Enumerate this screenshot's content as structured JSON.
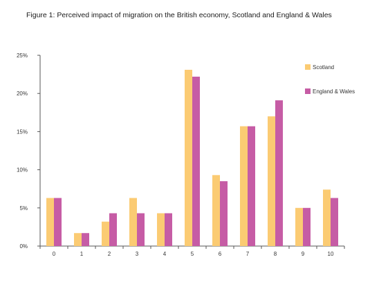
{
  "chart_data": {
    "type": "bar",
    "title": "Figure 1: Perceived impact of migration on the British economy, Scotland and England & Wales",
    "categories": [
      "0",
      "1",
      "2",
      "3",
      "4",
      "5",
      "6",
      "7",
      "8",
      "9",
      "10"
    ],
    "series": [
      {
        "name": "Scotland",
        "color": "#FBCB73",
        "values": [
          6.3,
          1.7,
          3.2,
          6.3,
          4.3,
          23.1,
          9.3,
          15.7,
          17.0,
          5.0,
          7.4
        ]
      },
      {
        "name": "England & Wales",
        "color": "#C65CA5",
        "values": [
          6.3,
          1.7,
          4.3,
          4.3,
          4.3,
          22.2,
          8.5,
          15.7,
          19.1,
          5.0,
          6.3
        ]
      }
    ],
    "y_ticks": [
      "0%",
      "5%",
      "10%",
      "15%",
      "20%",
      "25%"
    ],
    "ylim": [
      0,
      25
    ],
    "legend_position": "right",
    "grid": false
  }
}
